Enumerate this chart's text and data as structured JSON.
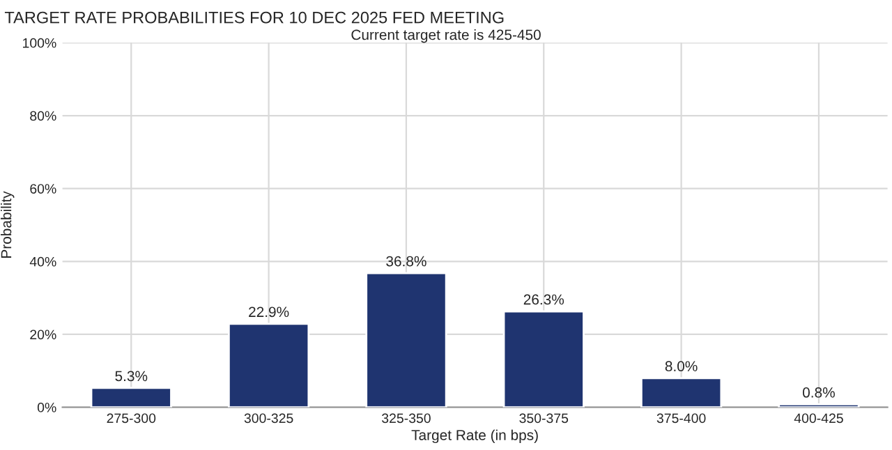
{
  "chart_data": {
    "type": "bar",
    "title": "TARGET RATE PROBABILITIES FOR 10 DEC 2025 FED MEETING",
    "subtitle": "Current target rate is 425-450",
    "xlabel": "Target Rate (in bps)",
    "ylabel": "Probability",
    "categories": [
      "275-300",
      "300-325",
      "325-350",
      "350-375",
      "375-400",
      "400-425"
    ],
    "values": [
      5.3,
      22.9,
      36.8,
      26.3,
      8.0,
      0.8
    ],
    "value_labels": [
      "5.3%",
      "22.9%",
      "36.8%",
      "26.3%",
      "8.0%",
      "0.8%"
    ],
    "color": "#1f3470",
    "ylim": [
      0,
      100
    ],
    "yticks": [
      {
        "value": 0,
        "label": "0%"
      },
      {
        "value": 20,
        "label": "20%"
      },
      {
        "value": 40,
        "label": "40%"
      },
      {
        "value": 60,
        "label": "60%"
      },
      {
        "value": 80,
        "label": "80%"
      },
      {
        "value": 100,
        "label": "100%"
      }
    ],
    "grid": true,
    "legend": false
  }
}
